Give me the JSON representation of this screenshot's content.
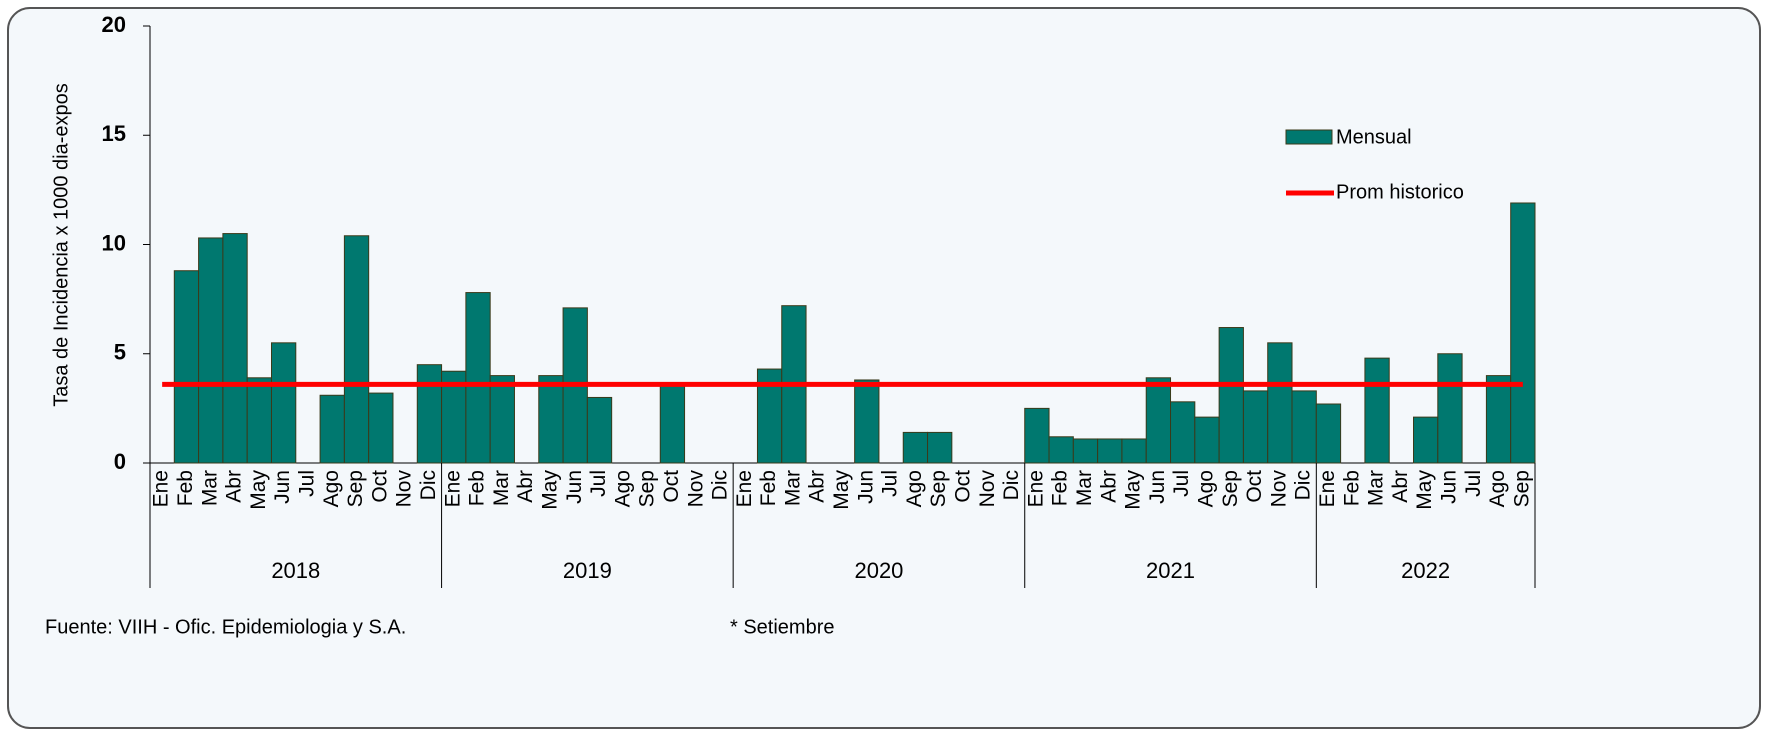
{
  "chart_data": {
    "type": "bar",
    "y_label": "Tasa de Incidencia x 1000 dia-expos",
    "categories": [
      "Ene",
      "Feb",
      "Mar",
      "Abr",
      "May",
      "Jun",
      "Jul",
      "Ago",
      "Sep",
      "Oct",
      "Nov",
      "Dic",
      "Ene",
      "Feb",
      "Mar",
      "Abr",
      "May",
      "Jun",
      "Jul",
      "Ago",
      "Sep",
      "Oct",
      "Nov",
      "Dic",
      "Ene",
      "Feb",
      "Mar",
      "Abr",
      "May",
      "Jun",
      "Jul",
      "Ago",
      "Sep",
      "Oct",
      "Nov",
      "Dic",
      "Ene",
      "Feb",
      "Mar",
      "Abr",
      "May",
      "Jun",
      "Jul",
      "Ago",
      "Sep",
      "Oct",
      "Nov",
      "Dic",
      "Ene",
      "Feb",
      "Mar",
      "Abr",
      "May",
      "Jun",
      "Jul",
      "Ago",
      "Sep"
    ],
    "years": [
      "2018",
      "2019",
      "2020",
      "2021",
      "2022"
    ],
    "series": [
      {
        "name": "Mensual",
        "color": "#00786f",
        "values": [
          null,
          8.8,
          10.3,
          10.5,
          3.9,
          5.5,
          null,
          3.1,
          10.4,
          3.2,
          null,
          4.5,
          4.2,
          7.8,
          4.0,
          null,
          4.0,
          7.1,
          3.0,
          null,
          null,
          3.6,
          null,
          null,
          null,
          4.3,
          7.2,
          null,
          null,
          3.8,
          null,
          1.4,
          1.4,
          null,
          null,
          null,
          2.5,
          1.2,
          1.1,
          1.1,
          1.1,
          3.9,
          2.8,
          2.1,
          6.2,
          3.3,
          5.5,
          3.3,
          2.7,
          null,
          4.8,
          null,
          2.1,
          5.0,
          null,
          4.0,
          11.9
        ]
      },
      {
        "name": "Prom historico",
        "type": "line",
        "color": "#ff0000",
        "value": 3.6
      }
    ],
    "ylim": [
      0,
      20
    ],
    "yticks": [
      0,
      5,
      10,
      15,
      20
    ],
    "legend": "upper right",
    "source": "Fuente: VIIH - Ofic. Epidemiologia y S.A.",
    "note": "* Setiembre"
  }
}
